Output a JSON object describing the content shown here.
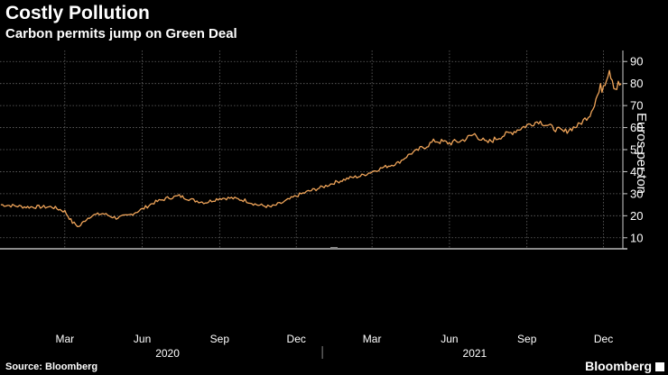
{
  "header": {
    "title": "Costly Pollution",
    "subtitle": "Carbon permits jump on Green Deal"
  },
  "footer": {
    "source": "Source: Bloomberg",
    "brand": "Bloomberg"
  },
  "colors": {
    "background": "#000000",
    "line": "#f0a55a",
    "grid": "#666666",
    "text": "#ffffff"
  },
  "chart_data": {
    "type": "line",
    "title": "",
    "ylabel": "Euros per ton",
    "ylim": [
      5,
      95
    ],
    "yticks": [
      10,
      20,
      30,
      40,
      50,
      60,
      70,
      80,
      90
    ],
    "y_axis_side": "right",
    "grid": true,
    "x_tick_labels": [
      "Mar",
      "Jun",
      "Sep",
      "Dec",
      "Mar",
      "Jun",
      "Sep",
      "Dec"
    ],
    "x_tick_dates": [
      "2020-03-01",
      "2020-06-01",
      "2020-09-01",
      "2020-12-01",
      "2021-03-01",
      "2021-06-01",
      "2021-09-01",
      "2021-12-01"
    ],
    "x_year_labels": [
      "2020",
      "2021"
    ],
    "x_year_dates": [
      "2020-07-01",
      "2021-07-01"
    ],
    "xlim": [
      "2019-12-15",
      "2021-12-24"
    ],
    "series": [
      {
        "x": [
          "2019-12-16",
          "2020-01-01",
          "2020-01-15",
          "2020-02-01",
          "2020-02-15",
          "2020-03-01",
          "2020-03-10",
          "2020-03-18",
          "2020-03-25",
          "2020-04-01",
          "2020-04-15",
          "2020-05-01",
          "2020-05-15",
          "2020-06-01",
          "2020-06-15",
          "2020-07-01",
          "2020-07-15",
          "2020-08-01",
          "2020-08-15",
          "2020-09-01",
          "2020-09-15",
          "2020-10-01",
          "2020-10-15",
          "2020-11-01",
          "2020-11-15",
          "2020-12-01",
          "2020-12-15",
          "2021-01-01",
          "2021-01-15",
          "2021-02-01",
          "2021-02-15",
          "2021-03-01",
          "2021-03-15",
          "2021-04-01",
          "2021-04-15",
          "2021-05-01",
          "2021-05-15",
          "2021-06-01",
          "2021-06-15",
          "2021-07-01",
          "2021-07-15",
          "2021-08-01",
          "2021-08-15",
          "2021-09-01",
          "2021-09-15",
          "2021-10-01",
          "2021-10-15",
          "2021-11-01",
          "2021-11-15",
          "2021-11-22",
          "2021-12-01",
          "2021-12-08",
          "2021-12-15",
          "2021-12-22"
        ],
        "y": [
          25,
          24.5,
          24,
          24,
          24,
          22,
          17,
          15,
          18,
          20,
          21,
          19,
          20,
          23,
          26,
          28,
          29,
          27,
          26,
          28,
          28,
          27,
          25,
          24,
          26,
          29,
          31,
          33,
          35,
          37,
          38,
          40,
          42,
          44,
          48,
          51,
          54,
          53,
          54,
          57,
          53,
          56,
          58,
          61,
          63,
          60,
          58,
          61,
          66,
          73,
          80,
          87,
          78,
          80
        ]
      }
    ]
  }
}
